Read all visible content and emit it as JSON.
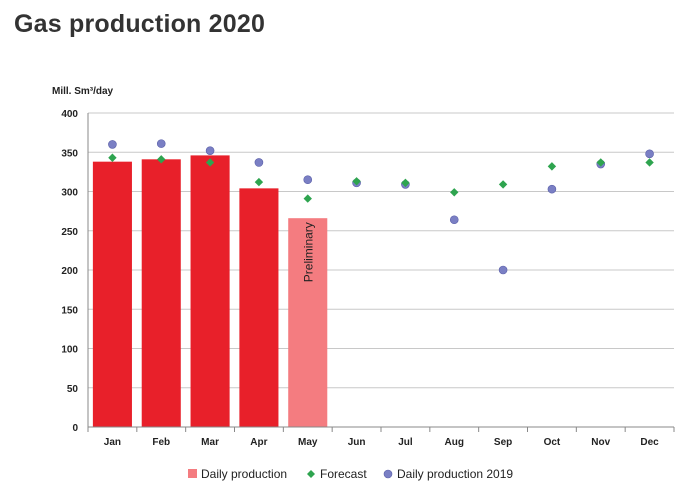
{
  "page": {
    "title": "Gas production 2020"
  },
  "chart_data": {
    "type": "bar",
    "ylabel": "Mill. Sm³/day",
    "ylim": [
      0,
      400
    ],
    "yticks": [
      0,
      50,
      100,
      150,
      200,
      250,
      300,
      350,
      400
    ],
    "grid": true,
    "legend_position": "bottom",
    "categories": [
      "Jan",
      "Feb",
      "Mar",
      "Apr",
      "May",
      "Jun",
      "Jul",
      "Aug",
      "Sep",
      "Oct",
      "Nov",
      "Dec"
    ],
    "series": [
      {
        "name": "Daily production",
        "kind": "bar",
        "color": "#e8202a",
        "preliminary_color": "#f47c80",
        "values": [
          338,
          341,
          346,
          304,
          266,
          null,
          null,
          null,
          null,
          null,
          null,
          null
        ],
        "preliminary_index": 4
      },
      {
        "name": "Forecast",
        "kind": "diamond",
        "color": "#2ea44f",
        "values": [
          343,
          341,
          337,
          312,
          291,
          313,
          311,
          299,
          309,
          332,
          337,
          337
        ]
      },
      {
        "name": "Daily production 2019",
        "kind": "circle",
        "color": "#7a7fc4",
        "values": [
          360,
          361,
          352,
          337,
          315,
          311,
          309,
          264,
          200,
          303,
          335,
          348
        ]
      }
    ],
    "annotations": [
      {
        "text": "Preliminary",
        "category": "May"
      }
    ]
  }
}
